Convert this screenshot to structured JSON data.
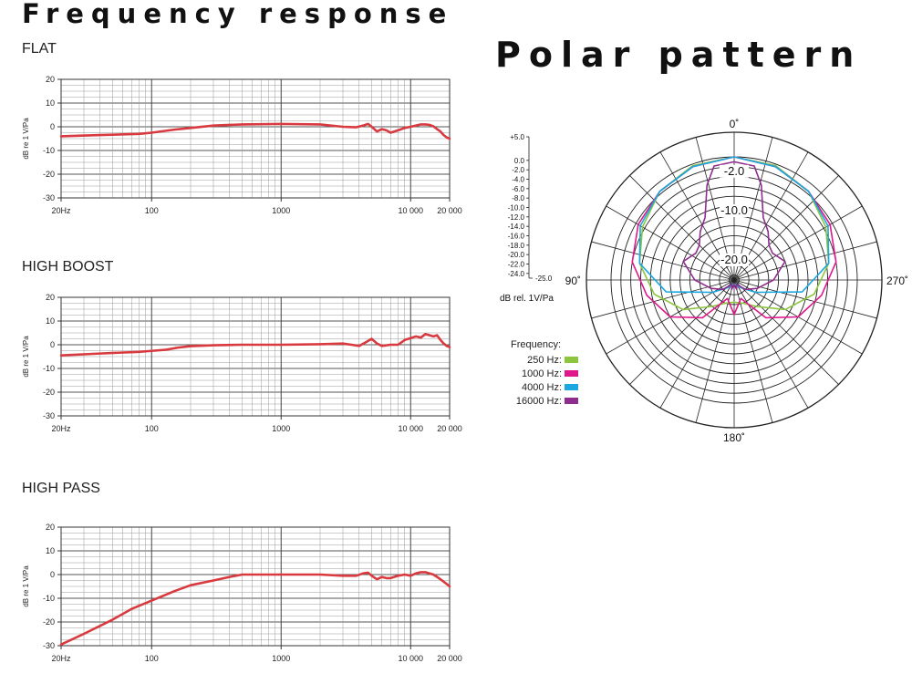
{
  "page": {
    "title": "Frequency response",
    "polar_title": "Polar pattern"
  },
  "chart_data": [
    {
      "type": "line",
      "title": "FLAT",
      "ylabel": "dB re 1 V/Pa",
      "xscale": "log",
      "xlim": [
        20,
        20000
      ],
      "ylim": [
        -30,
        20
      ],
      "xticks": [
        20,
        100,
        1000,
        10000,
        20000
      ],
      "xtick_labels": [
        "20Hz",
        "100",
        "1000",
        "10 000",
        "20 000"
      ],
      "yticks": [
        20,
        10,
        0,
        -10,
        -20,
        -30
      ],
      "ytick_labels": [
        "20",
        "10",
        "0",
        "-10",
        "-20",
        "-30"
      ],
      "grid": true,
      "color": "#d83a3f",
      "series": [
        {
          "x": [
            20,
            40,
            80,
            100,
            150,
            200,
            300,
            500,
            1000,
            2000,
            3000,
            3800,
            4300,
            4700,
            5000,
            5500,
            6000,
            6500,
            7000,
            8000,
            9000,
            10000,
            11000,
            12000,
            13000,
            14000,
            15000,
            16000,
            17000,
            18000,
            19000,
            20000
          ],
          "y": [
            -4,
            -3.5,
            -3,
            -2.5,
            -1.2,
            -0.5,
            0.5,
            1,
            1.2,
            1,
            0,
            -0.2,
            0.5,
            1.2,
            0,
            -2,
            -1,
            -1.5,
            -2.5,
            -1.5,
            -0.5,
            0,
            0.5,
            1,
            1,
            0.8,
            0.2,
            -1,
            -2,
            -3.5,
            -4.5,
            -5
          ]
        }
      ]
    },
    {
      "type": "line",
      "title": "HIGH BOOST",
      "ylabel": "dB re 1 V/Pa",
      "xscale": "log",
      "xlim": [
        20,
        20000
      ],
      "ylim": [
        -30,
        20
      ],
      "xticks": [
        20,
        100,
        1000,
        10000,
        20000
      ],
      "xtick_labels": [
        "20Hz",
        "100",
        "1000",
        "10 000",
        "20 000"
      ],
      "yticks": [
        20,
        10,
        0,
        -10,
        -20,
        -30
      ],
      "ytick_labels": [
        "20",
        "10",
        "0",
        "-10",
        "-20",
        "-30"
      ],
      "grid": true,
      "color": "#d83a3f",
      "series": [
        {
          "x": [
            20,
            40,
            80,
            100,
            130,
            160,
            200,
            300,
            500,
            1000,
            2000,
            3000,
            3500,
            4000,
            4500,
            5000,
            5500,
            6000,
            7000,
            8000,
            9000,
            10000,
            11000,
            12000,
            13000,
            14000,
            15000,
            16000,
            17000,
            18000,
            19000,
            20000
          ],
          "y": [
            -4.5,
            -3.7,
            -3,
            -2.6,
            -2.1,
            -1.2,
            -0.6,
            -0.2,
            0,
            0,
            0.2,
            0.5,
            0,
            -0.5,
            1,
            2.5,
            0.5,
            -0.5,
            0,
            0,
            2,
            2.8,
            3.5,
            3,
            4.5,
            4,
            3.5,
            4,
            2,
            0.5,
            -0.5,
            -1
          ]
        }
      ]
    },
    {
      "type": "line",
      "title": "HIGH PASS",
      "ylabel": "dB re 1 V/Pa",
      "xscale": "log",
      "xlim": [
        20,
        20000
      ],
      "ylim": [
        -30,
        20
      ],
      "xticks": [
        20,
        100,
        1000,
        10000,
        20000
      ],
      "xtick_labels": [
        "20Hz",
        "100",
        "1000",
        "10 000",
        "20 000"
      ],
      "yticks": [
        20,
        10,
        0,
        -10,
        -20,
        -30
      ],
      "ytick_labels": [
        "20",
        "10",
        "0",
        "-10",
        "-20",
        "-30"
      ],
      "grid": true,
      "color": "#d83a3f",
      "series": [
        {
          "x": [
            20,
            30,
            50,
            70,
            100,
            150,
            200,
            300,
            400,
            500,
            700,
            1000,
            2000,
            3000,
            3800,
            4300,
            4700,
            5000,
            5500,
            6000,
            6500,
            7000,
            8000,
            9000,
            10000,
            11000,
            12000,
            13000,
            14000,
            15000,
            16000,
            17000,
            18000,
            19000,
            20000
          ],
          "y": [
            -29.5,
            -25,
            -19,
            -14.5,
            -11,
            -7,
            -4.5,
            -2.5,
            -1,
            0,
            0,
            0,
            0,
            -0.5,
            -0.5,
            0.5,
            0.8,
            -0.5,
            -2,
            -1,
            -1.5,
            -1.5,
            -0.5,
            0,
            -0.5,
            0.5,
            1,
            1,
            0.5,
            0,
            -1,
            -2,
            -3,
            -4,
            -5
          ]
        }
      ]
    },
    {
      "type": "polar",
      "title": "Polar pattern",
      "radial_unit_label": "dB rel. 1V/Pa",
      "rlim": [
        -25,
        5
      ],
      "scale_ticks": [
        "+5.0",
        "0.0",
        "-2.0",
        "-4.0",
        "-6.0",
        "-8.0",
        "-10.0",
        "-12.0",
        "-14.0",
        "-16.0",
        "-18.0",
        "-20.0",
        "-22.0",
        "-24.0",
        "-25.0"
      ],
      "ring_labels": [
        "-2.0",
        "-10.0",
        "-20.0"
      ],
      "angle_labels": [
        "0˚",
        "90˚",
        "180˚",
        "270˚"
      ],
      "legend_title": "Frequency:",
      "series": [
        {
          "name": "250 Hz:",
          "color": "#8cc63f",
          "angles": [
            0,
            20,
            40,
            60,
            80,
            100,
            120,
            140,
            160,
            180,
            200,
            220,
            240,
            260,
            280,
            300,
            320,
            340,
            360
          ],
          "values": [
            0,
            -0.3,
            -1.5,
            -3.5,
            -5.5,
            -8.5,
            -13,
            -18,
            -20,
            -20.5,
            -20,
            -18,
            -13,
            -8.5,
            -5.5,
            -3.5,
            -1.5,
            -0.3,
            0
          ]
        },
        {
          "name": "1000 Hz:",
          "color": "#e0178c",
          "angles": [
            0,
            20,
            40,
            60,
            80,
            100,
            120,
            140,
            160,
            180,
            200,
            220,
            240,
            260,
            280,
            300,
            320,
            340,
            360
          ],
          "values": [
            0,
            -0.5,
            -1.5,
            -2.5,
            -4,
            -7,
            -10,
            -15,
            -21,
            -18,
            -21,
            -15,
            -10,
            -7,
            -4,
            -2.5,
            -1.5,
            -0.5,
            0
          ]
        },
        {
          "name": "4000 Hz:",
          "color": "#1ba7df",
          "angles": [
            0,
            20,
            40,
            60,
            80,
            100,
            120,
            140,
            160,
            180,
            200,
            220,
            240,
            260,
            280,
            300,
            320,
            340,
            360
          ],
          "values": [
            0,
            -0.5,
            -1.5,
            -3,
            -5.5,
            -11,
            -20,
            -23,
            -24,
            -24,
            -24,
            -23,
            -20,
            -11,
            -5.5,
            -3,
            -1.5,
            -0.5,
            0
          ]
        },
        {
          "name": "16000 Hz:",
          "color": "#8e2d8e",
          "angles": [
            0,
            10,
            16,
            25,
            35,
            45,
            55,
            70,
            90,
            110,
            130,
            150,
            165,
            180,
            195,
            210,
            230,
            250,
            270,
            290,
            305,
            315,
            325,
            335,
            344,
            350,
            360
          ],
          "values": [
            -1,
            -1.5,
            -5,
            -11,
            -13,
            -15,
            -15.5,
            -14,
            -17,
            -20,
            -22,
            -24,
            -23,
            -24,
            -23,
            -24,
            -22,
            -20,
            -17,
            -14,
            -15.5,
            -15,
            -13,
            -11,
            -5,
            -1.5,
            -1
          ]
        }
      ]
    }
  ]
}
